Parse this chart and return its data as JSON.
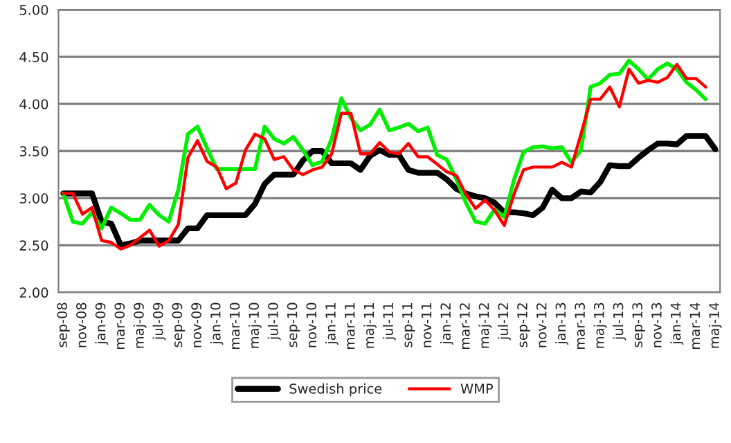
{
  "chart_data": {
    "type": "line",
    "categories": [
      "sep-08",
      null,
      "nov-08",
      null,
      "jan-09",
      null,
      "mar-09",
      null,
      "maj-09",
      null,
      "jul-09",
      null,
      "sep-09",
      null,
      "nov-09",
      null,
      "jan-10",
      null,
      "mar-10",
      null,
      "maj-10",
      null,
      "jul-10",
      null,
      "sep-10",
      null,
      "nov-10",
      null,
      "jan-11",
      null,
      "mar-11",
      null,
      "maj-11",
      null,
      "jul-11",
      null,
      "sep-11",
      null,
      "nov-11",
      null,
      "jan-12",
      null,
      "mar-12",
      null,
      "maj-12",
      null,
      "jul-12",
      null,
      "sep-12",
      null,
      "nov-12",
      null,
      "jan-13",
      null,
      "mar-13",
      null,
      "maj-13",
      null,
      "jul-13",
      null,
      "sep-13",
      null,
      "nov-13",
      null,
      "jan-14",
      null,
      "mar-14",
      null,
      "maj-14"
    ],
    "series": [
      {
        "name": "Swedish price",
        "color": "#000000",
        "values": [
          3.05,
          3.05,
          3.05,
          3.05,
          2.75,
          2.73,
          2.5,
          2.52,
          2.55,
          2.55,
          2.55,
          2.55,
          2.55,
          2.68,
          2.68,
          2.82,
          2.82,
          2.82,
          2.82,
          2.82,
          2.94,
          3.15,
          3.25,
          3.25,
          3.25,
          3.4,
          3.5,
          3.5,
          3.37,
          3.37,
          3.37,
          3.3,
          3.45,
          3.51,
          3.46,
          3.46,
          3.3,
          3.27,
          3.27,
          3.27,
          3.2,
          3.1,
          3.05,
          3.02,
          3.0,
          2.95,
          2.85,
          2.85,
          2.84,
          2.82,
          2.9,
          3.09,
          3.0,
          3.0,
          3.07,
          3.06,
          3.17,
          3.35,
          3.34,
          3.34,
          3.43,
          3.51,
          3.58,
          3.58,
          3.57,
          3.66,
          3.66,
          3.66,
          3.52
        ]
      },
      {
        "color": "#00ee00",
        "values": [
          3.05,
          2.75,
          2.73,
          2.85,
          2.68,
          2.9,
          2.84,
          2.77,
          2.77,
          2.93,
          2.82,
          2.75,
          3.09,
          3.68,
          3.76,
          3.53,
          3.31,
          3.31,
          3.31,
          3.31,
          3.31,
          3.76,
          3.63,
          3.58,
          3.65,
          3.51,
          3.35,
          3.39,
          3.63,
          4.06,
          3.85,
          3.72,
          3.78,
          3.94,
          3.72,
          3.75,
          3.79,
          3.71,
          3.75,
          3.46,
          3.41,
          3.2,
          2.95,
          2.75,
          2.73,
          2.88,
          2.8,
          3.19,
          3.49,
          3.54,
          3.55,
          3.53,
          3.54,
          3.38,
          3.51,
          4.18,
          4.22,
          4.31,
          4.32,
          4.46,
          4.37,
          4.26,
          4.37,
          4.43,
          4.37,
          4.23,
          4.15,
          4.05,
          null
        ]
      },
      {
        "name": "WMP",
        "color": "#ff0000",
        "values": [
          3.05,
          3.05,
          2.83,
          2.9,
          2.55,
          2.53,
          2.46,
          2.5,
          2.58,
          2.66,
          2.49,
          2.55,
          2.72,
          3.43,
          3.61,
          3.39,
          3.33,
          3.1,
          3.16,
          3.51,
          3.68,
          3.63,
          3.41,
          3.44,
          3.3,
          3.25,
          3.3,
          3.33,
          3.47,
          3.9,
          3.9,
          3.47,
          3.47,
          3.59,
          3.49,
          3.47,
          3.58,
          3.44,
          3.44,
          3.36,
          3.28,
          3.24,
          3.04,
          2.89,
          2.98,
          2.87,
          2.71,
          3.04,
          3.3,
          3.33,
          3.33,
          3.33,
          3.38,
          3.33,
          3.68,
          4.05,
          4.05,
          4.18,
          3.97,
          4.37,
          4.22,
          4.25,
          4.23,
          4.28,
          4.42,
          4.27,
          4.27,
          4.18,
          null
        ]
      }
    ],
    "ylim": [
      2.0,
      5.0
    ],
    "yticks": [
      {
        "value": 2.0,
        "label": "2.00"
      },
      {
        "value": 2.5,
        "label": "2.50"
      },
      {
        "value": 3.0,
        "label": "3.00"
      },
      {
        "value": 3.5,
        "label": "3.50"
      },
      {
        "value": 4.0,
        "label": "4.00"
      },
      {
        "value": 4.5,
        "label": "4.50"
      },
      {
        "value": 5.0,
        "label": "5.00"
      }
    ],
    "grid": "y",
    "legend": "bottom",
    "marker": "none",
    "line_style": "solid"
  }
}
